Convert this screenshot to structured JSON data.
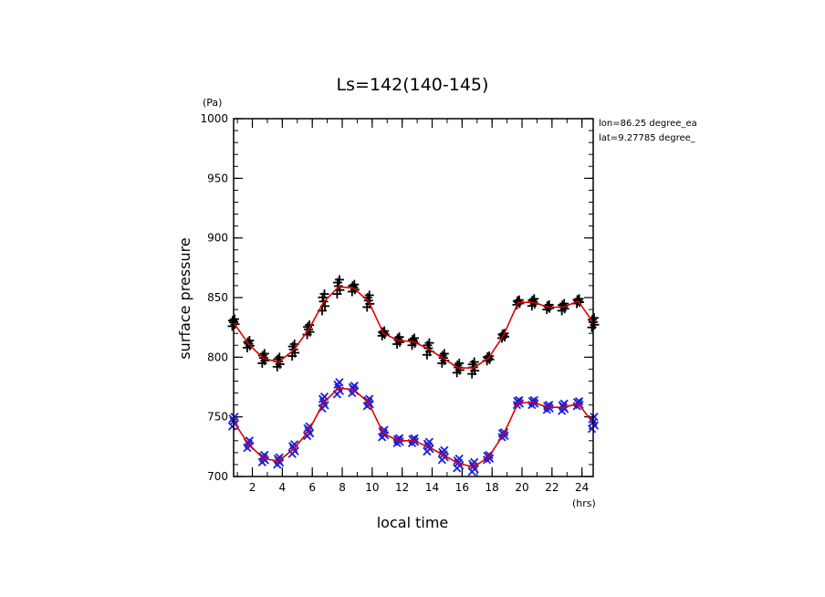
{
  "chart_data": {
    "type": "scatter",
    "title": "Ls=142(140-145)",
    "xlabel": "local time",
    "ylabel": "surface pressure",
    "x_unit": "(hrs)",
    "y_unit": "(Pa)",
    "xlim": [
      0.75,
      24.75
    ],
    "ylim": [
      700,
      1000
    ],
    "xticks": [
      2,
      4,
      6,
      8,
      10,
      12,
      14,
      16,
      18,
      20,
      22,
      24
    ],
    "yticks": [
      700,
      750,
      800,
      850,
      900,
      950,
      1000
    ],
    "annotations": [
      "lon=86.25 degree_ea",
      "lat=9.27785 degree_"
    ],
    "colors": {
      "upper_markers": "#000000",
      "lower_markers": "#1f1fd6",
      "mean_line": "#dd0000"
    },
    "x": [
      0.75,
      1.75,
      2.75,
      3.75,
      4.75,
      5.75,
      6.75,
      7.75,
      8.75,
      9.75,
      10.75,
      11.75,
      12.75,
      13.75,
      14.75,
      15.75,
      16.75,
      17.75,
      18.75,
      19.75,
      20.75,
      21.75,
      22.75,
      23.75,
      24.75
    ],
    "series": [
      {
        "marker": "plus",
        "mean": [
          829,
          811,
          799,
          796,
          806,
          823,
          846,
          859,
          858,
          847,
          820,
          814,
          813,
          807,
          799,
          791,
          791,
          799,
          818,
          846,
          846,
          842,
          842,
          847,
          829
        ],
        "spread": [
          3,
          3,
          4,
          4,
          5,
          4,
          7,
          6,
          3,
          5,
          2,
          3,
          3,
          5,
          4,
          4,
          5,
          2,
          2,
          2,
          3,
          2,
          3,
          2,
          4
        ]
      },
      {
        "marker": "cross",
        "mean": [
          746,
          727,
          715,
          713,
          723,
          738,
          762,
          774,
          773,
          762,
          736,
          730,
          730,
          725,
          718,
          711,
          708,
          716,
          735,
          762,
          762,
          758,
          758,
          761,
          745
        ],
        "spread": [
          4,
          3,
          3,
          3,
          4,
          4,
          5,
          5,
          3,
          3,
          3,
          2,
          2,
          4,
          4,
          4,
          4,
          2,
          2,
          2,
          2,
          2,
          3,
          2,
          5
        ]
      }
    ]
  }
}
